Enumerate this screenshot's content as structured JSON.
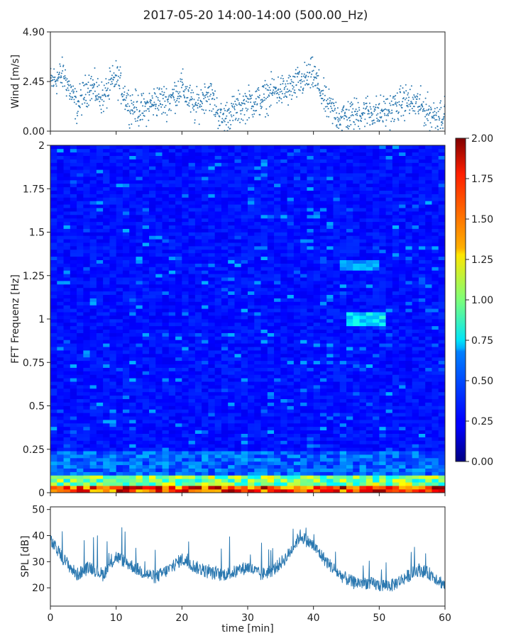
{
  "title": "2017-05-20 14:00-14:00 (500.00_Hz)",
  "colors": {
    "series": "#2b78b0",
    "frame": "#222222"
  },
  "chart_data": [
    {
      "name": "wind",
      "type": "scatter",
      "ylabel": "Wind [m/s]",
      "ylim": [
        0.0,
        4.9
      ],
      "yticks": [
        0.0,
        2.45,
        4.9
      ],
      "ytick_labels": [
        "0.00",
        "2.45",
        "4.90"
      ],
      "xlim": [
        0,
        60
      ],
      "x": [
        0,
        2,
        4,
        6,
        8,
        10,
        12,
        14,
        16,
        18,
        20,
        22,
        24,
        26,
        28,
        30,
        32,
        34,
        36,
        38,
        40,
        42,
        44,
        46,
        48,
        50,
        52,
        54,
        56,
        58,
        60
      ],
      "y": [
        2.4,
        2.8,
        1.2,
        2.3,
        1.6,
        2.7,
        1.3,
        1.0,
        1.5,
        1.5,
        2.2,
        1.1,
        2.0,
        0.6,
        1.0,
        1.4,
        1.5,
        2.0,
        2.0,
        2.4,
        2.8,
        1.3,
        0.7,
        0.8,
        1.0,
        0.9,
        1.1,
        1.5,
        1.3,
        0.8,
        0.9
      ]
    },
    {
      "name": "spectrogram",
      "type": "heatmap",
      "ylabel": "FFT Frequenz [Hz]",
      "ylim": [
        0,
        2
      ],
      "yticks": [
        0,
        0.25,
        0.5,
        0.75,
        1,
        1.25,
        1.5,
        1.75,
        2
      ],
      "ytick_labels": [
        "0",
        "0.25",
        "0.5",
        "0.75",
        "1",
        "1.25",
        "1.5",
        "1.75",
        "2"
      ],
      "xlim": [
        0,
        60
      ],
      "colormap": "jet",
      "colorbar": {
        "range": [
          0.0,
          2.0
        ],
        "ticks": [
          0.0,
          0.25,
          0.5,
          0.75,
          1.0,
          1.25,
          1.5,
          1.75,
          2.0
        ],
        "tick_labels": [
          "0.00",
          "0.25",
          "0.50",
          "0.75",
          "1.00",
          "1.25",
          "1.50",
          "1.75",
          "2.00"
        ]
      }
    },
    {
      "name": "spl",
      "type": "line",
      "ylabel": "SPL [dB]",
      "xlabel": "time [min]",
      "ylim": [
        13,
        51
      ],
      "yticks": [
        20,
        30,
        40,
        50
      ],
      "ytick_labels": [
        "20",
        "30",
        "40",
        "50"
      ],
      "xlim": [
        0,
        60
      ],
      "xticks": [
        0,
        10,
        20,
        30,
        40,
        50,
        60
      ],
      "xtick_labels": [
        "0",
        "10",
        "20",
        "30",
        "40",
        "50",
        "60"
      ],
      "x": [
        0,
        2,
        4,
        6,
        8,
        10,
        12,
        14,
        16,
        18,
        20,
        22,
        24,
        26,
        28,
        30,
        32,
        34,
        36,
        38,
        40,
        42,
        44,
        46,
        48,
        50,
        52,
        54,
        56,
        58,
        60
      ],
      "y": [
        38,
        31,
        25,
        28,
        25,
        32,
        29,
        26,
        24,
        27,
        31,
        28,
        26,
        25,
        26,
        28,
        25,
        27,
        32,
        40,
        36,
        30,
        25,
        22,
        22,
        21,
        21,
        24,
        27,
        25,
        21
      ]
    }
  ]
}
